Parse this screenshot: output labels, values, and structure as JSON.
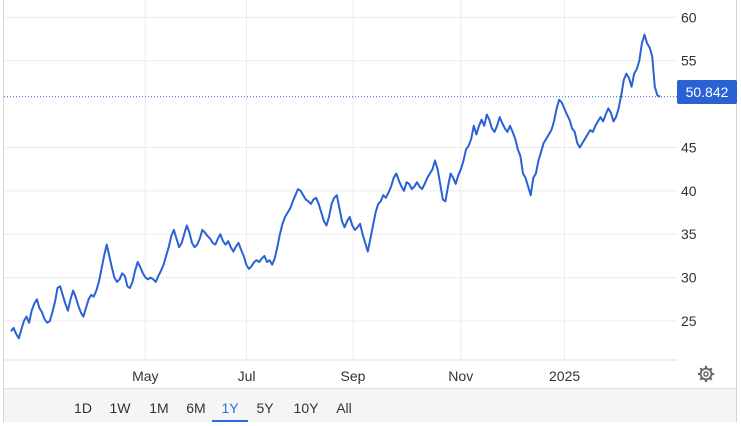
{
  "chart_data": {
    "type": "line",
    "y_ticks": [
      60,
      55,
      45,
      40,
      35,
      30,
      25
    ],
    "x_ticks": [
      {
        "label": "May",
        "t": 0.207
      },
      {
        "label": "Jul",
        "t": 0.363
      },
      {
        "label": "Sep",
        "t": 0.527
      },
      {
        "label": "Nov",
        "t": 0.693
      },
      {
        "label": "2025",
        "t": 0.853
      }
    ],
    "ylim": [
      20.5,
      62
    ],
    "last_value": "50.842",
    "grid": true,
    "line_color": "#2a62d4",
    "values": [
      23.8,
      24.2,
      23.5,
      23.0,
      24.0,
      25.0,
      25.5,
      24.8,
      26.2,
      27.0,
      27.5,
      26.5,
      26.0,
      25.2,
      24.8,
      25.0,
      26.0,
      27.2,
      28.8,
      29.0,
      28.0,
      27.0,
      26.2,
      27.5,
      28.5,
      27.8,
      26.8,
      26.0,
      25.5,
      26.5,
      27.5,
      28.0,
      27.8,
      28.5,
      29.5,
      31.0,
      32.5,
      33.8,
      32.5,
      31.2,
      30.0,
      29.5,
      29.8,
      30.5,
      30.2,
      29.0,
      28.8,
      29.5,
      30.8,
      31.8,
      31.2,
      30.5,
      30.0,
      29.8,
      30.0,
      29.8,
      29.5,
      30.2,
      30.8,
      31.5,
      32.5,
      33.5,
      34.8,
      35.5,
      34.5,
      33.5,
      34.0,
      35.0,
      36.0,
      35.2,
      34.0,
      33.5,
      33.8,
      34.5,
      35.5,
      35.2,
      34.8,
      34.5,
      34.0,
      33.8,
      34.5,
      35.0,
      34.2,
      33.8,
      34.2,
      33.5,
      33.0,
      33.6,
      34.0,
      33.2,
      32.5,
      31.5,
      31.0,
      31.3,
      31.8,
      32.0,
      31.8,
      32.2,
      32.5,
      31.8,
      32.0,
      31.5,
      32.2,
      33.5,
      35.0,
      36.2,
      37.0,
      37.5,
      38.0,
      38.8,
      39.5,
      40.2,
      40.0,
      39.5,
      39.0,
      38.8,
      38.5,
      39.0,
      39.2,
      38.5,
      37.5,
      36.5,
      36.0,
      37.0,
      38.5,
      39.2,
      39.5,
      38.0,
      36.5,
      35.8,
      36.5,
      37.0,
      36.0,
      35.5,
      35.8,
      36.2,
      35.0,
      34.0,
      33.0,
      34.5,
      36.0,
      37.5,
      38.5,
      38.8,
      39.5,
      39.2,
      39.8,
      40.5,
      41.5,
      42.0,
      41.2,
      40.5,
      40.0,
      41.0,
      40.8,
      40.2,
      40.5,
      41.0,
      40.5,
      40.2,
      40.8,
      41.5,
      42.0,
      42.5,
      43.5,
      42.5,
      40.8,
      39.0,
      38.8,
      40.5,
      42.0,
      41.5,
      40.8,
      41.8,
      42.5,
      43.5,
      44.8,
      45.2,
      46.0,
      47.5,
      46.5,
      47.5,
      48.2,
      47.5,
      48.8,
      48.2,
      47.2,
      46.8,
      47.5,
      48.5,
      47.8,
      47.2,
      46.8,
      47.5,
      46.8,
      46.0,
      44.8,
      44.0,
      42.0,
      41.5,
      40.5,
      39.5,
      41.5,
      42.0,
      43.5,
      44.5,
      45.5,
      46.0,
      46.5,
      47.0,
      48.0,
      49.5,
      50.5,
      50.2,
      49.5,
      48.8,
      48.2,
      47.2,
      46.8,
      45.5,
      45.0,
      45.5,
      46.0,
      46.5,
      47.0,
      46.8,
      47.5,
      48.0,
      48.5,
      48.0,
      48.8,
      49.5,
      49.0,
      48.0,
      48.5,
      49.5,
      51.0,
      52.8,
      53.5,
      53.0,
      52.0,
      53.5,
      54.0,
      55.0,
      57.0,
      58.0,
      57.0,
      56.5,
      55.5,
      52.0,
      51.0,
      50.842
    ]
  },
  "toolbar": {
    "ranges": [
      "1D",
      "1W",
      "1M",
      "6M",
      "1Y",
      "5Y",
      "10Y",
      "All"
    ],
    "active": "1Y"
  },
  "icons": {
    "settings": "gear-icon"
  }
}
